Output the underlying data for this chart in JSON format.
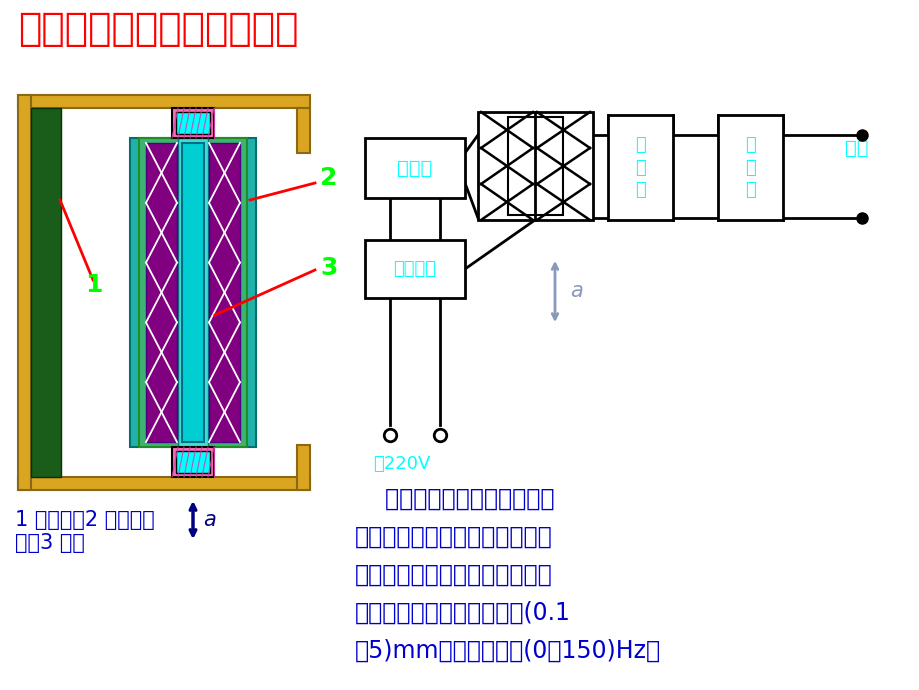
{
  "title": "差动变压器式加速度传感器",
  "title_color": "#FF0000",
  "bg_color": "#FFFFFF",
  "label1_color": "#00FF00",
  "label2_color": "#00FF00",
  "label3_color": "#00FF00",
  "cyan_color": "#00FFFF",
  "dark_blue_color": "#0000CC",
  "caption_color": "#0000CC",
  "arrow_color": "#4466AA",
  "caption_text": "1 悬臂梁；2 差动变压\n器；3 衔铁",
  "desc_line1": "    用于测定振动物体的频率和",
  "desc_line2": "振幅时其激磁频率必须是振动频",
  "desc_line3": "率的十倍以上，才能得到精确的",
  "desc_line4": "测量结果。可测量的振幅为(0.1",
  "desc_line5": "～5)mm，振动频率为(0～150)Hz。",
  "text_220v": "～220V",
  "box_zhendangqi": "振荡器",
  "box_jianboqi": "检\n波\n器",
  "box_luboqi": "滤\n波\n器",
  "box_wenyaDianYuan": "稳压电源",
  "label_shuchu": "输出",
  "gold": "#DAA520",
  "gold_dark": "#8B6914",
  "dark_green": "#1A5C1A",
  "teal": "#20B2AA",
  "med_green": "#3CB371",
  "cyan_green": "#40E0D0",
  "purple": "#800080",
  "indigo": "#4B0082",
  "cyan_core": "#00CED1",
  "pink": "#FF69B4"
}
